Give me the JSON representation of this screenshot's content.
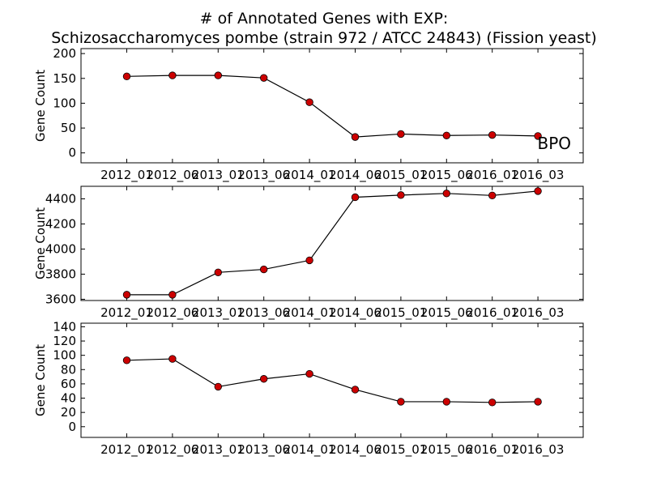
{
  "figure": {
    "title_line1": "# of Annotated Genes with EXP:",
    "title_line2": "Schizosaccharomyces pombe (strain 972 / ATCC 24843) (Fission yeast)"
  },
  "chart_data": [
    {
      "type": "line",
      "categories": [
        "2012_01",
        "2012_06",
        "2013_01",
        "2013_06",
        "2014_01",
        "2014_06",
        "2015_01",
        "2015_06",
        "2016_01",
        "2016_03"
      ],
      "values": [
        154,
        156,
        156,
        151,
        102,
        32,
        38,
        35,
        36,
        34
      ],
      "ylabel": "Gene Count",
      "ylim": [
        -20,
        210
      ],
      "yticks": [
        0,
        50,
        100,
        150,
        200
      ],
      "annotation": "BPO",
      "line_color": "#000000",
      "marker_color": "#cc0000",
      "grid": false
    },
    {
      "type": "line",
      "categories": [
        "2012_01",
        "2012_06",
        "2013_01",
        "2013_06",
        "2014_01",
        "2014_06",
        "2015_01",
        "2015_06",
        "2016_01",
        "2016_03"
      ],
      "values": [
        3636,
        3636,
        3814,
        3838,
        3910,
        4413,
        4430,
        4443,
        4427,
        4462
      ],
      "ylabel": "Gene Count",
      "ylim": [
        3590,
        4500
      ],
      "yticks": [
        3600,
        3800,
        4000,
        4200,
        4400
      ],
      "annotation": "",
      "line_color": "#000000",
      "marker_color": "#cc0000",
      "grid": false
    },
    {
      "type": "line",
      "categories": [
        "2012_01",
        "2012_06",
        "2013_01",
        "2013_06",
        "2014_01",
        "2014_06",
        "2015_01",
        "2015_06",
        "2016_01",
        "2016_03"
      ],
      "values": [
        93,
        95,
        56,
        67,
        74,
        52,
        35,
        35,
        34,
        35
      ],
      "ylabel": "Gene Count",
      "ylim": [
        -15,
        145
      ],
      "yticks": [
        0,
        20,
        40,
        60,
        80,
        100,
        120,
        140
      ],
      "annotation": "",
      "line_color": "#000000",
      "marker_color": "#cc0000",
      "grid": false
    }
  ]
}
